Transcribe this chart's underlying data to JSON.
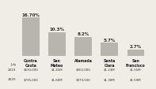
{
  "counties": [
    "Contra\nCosta",
    "San\nMateo",
    "Alameda",
    "Santa\nClara",
    "San\nFrancisco"
  ],
  "percentages": [
    16.7,
    10.3,
    8.2,
    5.7,
    2.7
  ],
  "pct_labels": [
    "16.70%",
    "10.3%",
    "8.2%",
    "5.7%",
    "2.7%"
  ],
  "july2019": [
    "$630,000",
    "$1.45M",
    "$900,000",
    "$1.23M",
    "$1.55M"
  ],
  "july2020": [
    "$735,000",
    "$1.60M",
    "$973,500",
    "$1.30M",
    "$1.59M"
  ],
  "bar_color": "#b8b4ae",
  "background_color": "#f0ede6",
  "ylim_max": 21,
  "bar_width": 0.65
}
